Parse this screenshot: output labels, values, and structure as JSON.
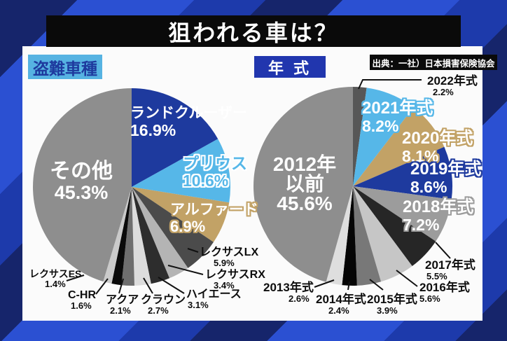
{
  "title": "狙われる車は？",
  "source": "出典：一社）日本損害保険協会",
  "left_panel_header": "盗難車種",
  "right_panel_header": "年 式",
  "colors": {
    "bg_stripe_dark": "#16256b",
    "bg_stripe_bright": "#2b50d2",
    "bg_stripe_mid": "#1d3aab",
    "panel": "#fbfbfb",
    "title_bar": "#0a0a0a",
    "left_header_bg": "#56b3e2",
    "left_header_text": "#1e3a9e",
    "right_header_bg": "#2136ae",
    "accent_navy": "#1e3a9e",
    "accent_lightblue": "#56b7e8",
    "accent_tan": "#c2a266"
  },
  "chart_data": [
    {
      "type": "pie",
      "title": "盗難車種",
      "start_angle_deg": 0,
      "direction": "clockwise",
      "slices": [
        {
          "label": "ランドクルーザー",
          "value": 16.9,
          "pct": "16.9%",
          "color": "#1e3a9e"
        },
        {
          "label": "プリウス",
          "value": 10.6,
          "pct": "10.6%",
          "color": "#56b7e8"
        },
        {
          "label": "アルファード",
          "value": 6.9,
          "pct": "6.9%",
          "color": "#c2a266"
        },
        {
          "label": "レクサスLX",
          "value": 5.9,
          "pct": "5.9%",
          "color": "#4b4b4b"
        },
        {
          "label": "レクサスRX",
          "value": 3.4,
          "pct": "3.4%",
          "color": "#b4b4b4"
        },
        {
          "label": "ハイエース",
          "value": 3.1,
          "pct": "3.1%",
          "color": "#2d2d2d"
        },
        {
          "label": "クラウン",
          "value": 2.7,
          "pct": "2.7%",
          "color": "#dcdcdc"
        },
        {
          "label": "アクア",
          "value": 2.1,
          "pct": "2.1%",
          "color": "#6e6e6e"
        },
        {
          "label": "C-HR",
          "value": 1.6,
          "pct": "1.6%",
          "color": "#0a0a0a"
        },
        {
          "label": "レクサスES",
          "value": 1.4,
          "pct": "1.4%",
          "color": "#cacaca"
        },
        {
          "label": "その他",
          "value": 45.3,
          "pct": "45.3%",
          "color": "#8e8e8e"
        }
      ]
    },
    {
      "type": "pie",
      "title": "年式",
      "start_angle_deg": 0,
      "direction": "clockwise",
      "slices": [
        {
          "label": "2022年式",
          "value": 2.2,
          "pct": "2.2%",
          "color": "#575757"
        },
        {
          "label": "2021年式",
          "value": 8.2,
          "pct": "8.2%",
          "color": "#56b7e8"
        },
        {
          "label": "2020年式",
          "value": 8.1,
          "pct": "8.1%",
          "color": "#c2a266"
        },
        {
          "label": "2019年式",
          "value": 8.6,
          "pct": "8.6%",
          "color": "#1e3a9e"
        },
        {
          "label": "2018年式",
          "value": 7.2,
          "pct": "7.2%",
          "color": "#9c9c9c"
        },
        {
          "label": "2017年式",
          "value": 5.5,
          "pct": "5.5%",
          "color": "#262626"
        },
        {
          "label": "2016年式",
          "value": 5.6,
          "pct": "5.6%",
          "color": "#c6c6c6"
        },
        {
          "label": "2015年式",
          "value": 3.9,
          "pct": "3.9%",
          "color": "#787878"
        },
        {
          "label": "2014年式",
          "value": 2.4,
          "pct": "2.4%",
          "color": "#050505"
        },
        {
          "label": "2013年式",
          "value": 2.6,
          "pct": "2.6%",
          "color": "#dedede"
        },
        {
          "label": "2012年以前",
          "label_line1": "2012年",
          "label_line2": "以前",
          "value": 45.6,
          "pct": "45.6%",
          "color": "#8e8e8e"
        }
      ]
    }
  ]
}
